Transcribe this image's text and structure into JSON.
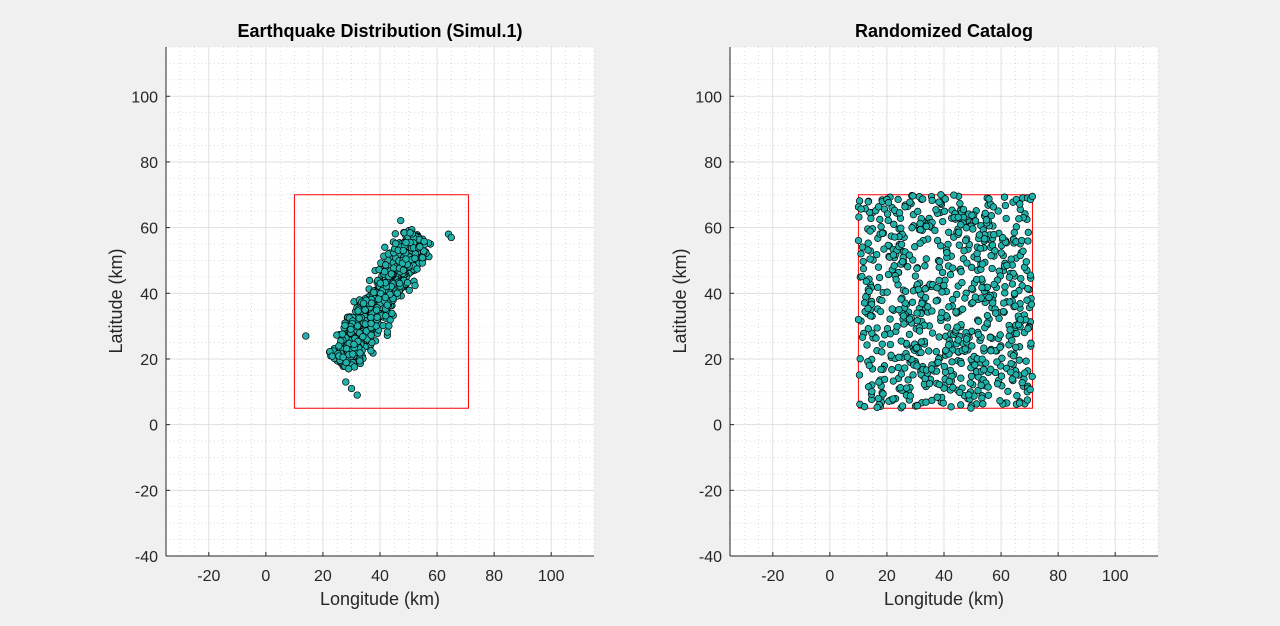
{
  "colors": {
    "figure_background": "#f0f0f0",
    "axes_background": "#ffffff",
    "marker_fill": "#20b2aa",
    "marker_edge": "#000000",
    "box": "#ff0000",
    "grid": "#d9d9d9",
    "axis": "#262626"
  },
  "chart_data": [
    {
      "type": "scatter",
      "title": "Earthquake Distribution (Simul.1)",
      "xlabel": "Longitude (km)",
      "ylabel": "Latitude (km)",
      "xlim": [
        -35,
        115
      ],
      "ylim": [
        -40,
        115
      ],
      "xticks": [
        -20,
        0,
        20,
        40,
        60,
        80,
        100
      ],
      "yticks": [
        -40,
        -20,
        0,
        20,
        40,
        60,
        80,
        100
      ],
      "grid": "on",
      "minor_grid": "on",
      "box_polygon": [
        [
          10,
          70
        ],
        [
          71,
          70
        ],
        [
          71,
          5
        ],
        [
          10,
          5
        ]
      ],
      "cloud": {
        "distribution": "elongated cluster trending NE",
        "center": [
          40,
          38
        ],
        "axis_direction": [
          1,
          1.45
        ],
        "along_halfwidth": 24,
        "across_halfwidth": 9,
        "count": 700,
        "outliers": [
          [
            14,
            27
          ],
          [
            64,
            58
          ],
          [
            65,
            57
          ],
          [
            30,
            11
          ],
          [
            32,
            9
          ],
          [
            28,
            13
          ]
        ]
      }
    },
    {
      "type": "scatter",
      "title": "Randomized Catalog",
      "xlabel": "Longitude (km)",
      "ylabel": "Latitude (km)",
      "xlim": [
        -35,
        115
      ],
      "ylim": [
        -40,
        115
      ],
      "xticks": [
        -20,
        0,
        20,
        40,
        60,
        80,
        100
      ],
      "yticks": [
        -40,
        -20,
        0,
        20,
        40,
        60,
        80,
        100
      ],
      "grid": "on",
      "minor_grid": "on",
      "box_polygon": [
        [
          10,
          70
        ],
        [
          71,
          70
        ],
        [
          71,
          5
        ],
        [
          10,
          5
        ]
      ],
      "cloud": {
        "distribution": "uniform random within box",
        "xrange": [
          10,
          71
        ],
        "yrange": [
          5,
          70
        ],
        "count": 800
      }
    }
  ]
}
